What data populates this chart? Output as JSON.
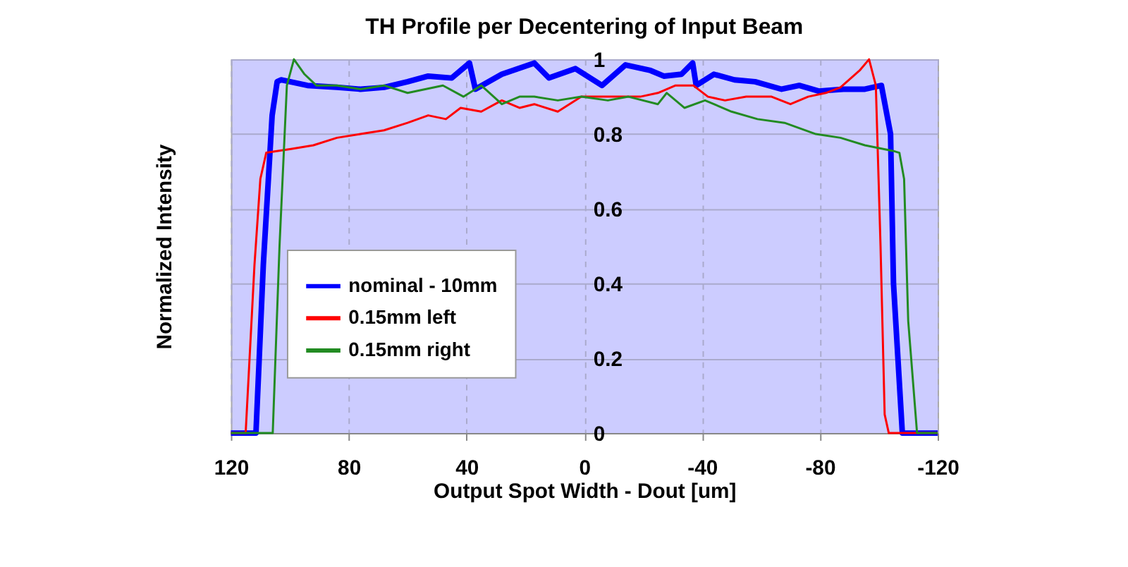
{
  "chart_data": {
    "type": "line",
    "title": "TH Profile per Decentering of Input Beam",
    "xlabel": "Output Spot Width - Dout  [um]",
    "ylabel": "Normalized Intensity",
    "xlim": [
      120,
      -120
    ],
    "xticks": [
      120,
      80,
      40,
      0,
      -40,
      -80,
      -120
    ],
    "ylim": [
      0,
      1
    ],
    "yticks": [
      0,
      0.2,
      0.4,
      0.6,
      0.8,
      1
    ],
    "grid": true,
    "legend": "bottom left",
    "line_style": "solid",
    "marker": "none",
    "series": [
      {
        "name": "nominal - 10mm",
        "color": "#0000ff",
        "x": [
          120,
          111.5,
          109,
          106,
          104.3,
          103,
          94,
          84,
          76,
          68,
          60,
          53,
          45,
          39,
          37,
          28,
          17,
          12,
          3,
          -6,
          -14,
          -22.5,
          -27,
          -33,
          -36.8,
          -38,
          -44,
          -51,
          -58,
          -67,
          -73,
          -79.6,
          -88,
          -95.3,
          -100.9,
          -104,
          -105,
          -108,
          -120
        ],
        "values": [
          0,
          0,
          0.45,
          0.85,
          0.94,
          0.945,
          0.93,
          0.925,
          0.92,
          0.925,
          0.94,
          0.955,
          0.95,
          0.99,
          0.92,
          0.96,
          0.99,
          0.95,
          0.975,
          0.93,
          0.985,
          0.97,
          0.955,
          0.96,
          0.99,
          0.93,
          0.96,
          0.945,
          0.94,
          0.92,
          0.93,
          0.915,
          0.92,
          0.92,
          0.93,
          0.8,
          0.4,
          0,
          0
        ]
      },
      {
        "name": "0.15mm left",
        "color": "#ff0000",
        "x": [
          120,
          115,
          112,
          110,
          108,
          99.6,
          92,
          84,
          76,
          68,
          60,
          53,
          47,
          42,
          35,
          28,
          22,
          17,
          9,
          1,
          -9,
          -19,
          -25,
          -31,
          -37,
          -42,
          -47.8,
          -55,
          -63.6,
          -70,
          -76,
          -82,
          -87,
          -93.5,
          -96.7,
          -99,
          -100.6,
          -102,
          -103.4,
          -120
        ],
        "values": [
          0,
          0,
          0.45,
          0.68,
          0.75,
          0.76,
          0.77,
          0.79,
          0.8,
          0.81,
          0.83,
          0.85,
          0.84,
          0.87,
          0.86,
          0.89,
          0.87,
          0.88,
          0.86,
          0.9,
          0.9,
          0.9,
          0.91,
          0.93,
          0.93,
          0.9,
          0.89,
          0.9,
          0.9,
          0.88,
          0.9,
          0.91,
          0.925,
          0.97,
          1.0,
          0.93,
          0.5,
          0.05,
          0,
          0
        ]
      },
      {
        "name": "0.15mm right",
        "color": "#228b22",
        "x": [
          120,
          105.8,
          103.5,
          101,
          98.6,
          95,
          91,
          84,
          76,
          68,
          60,
          54,
          48,
          41,
          35,
          28,
          22,
          17,
          9,
          1,
          -8,
          -15,
          -25,
          -28,
          -34,
          -41,
          -50,
          -58.8,
          -68,
          -78.6,
          -87,
          -95.3,
          -104.8,
          -107,
          -108.6,
          -110,
          -113,
          -120
        ],
        "values": [
          0,
          0,
          0.5,
          0.93,
          1.0,
          0.96,
          0.93,
          0.93,
          0.92,
          0.93,
          0.91,
          0.92,
          0.93,
          0.9,
          0.93,
          0.88,
          0.9,
          0.9,
          0.89,
          0.9,
          0.89,
          0.9,
          0.88,
          0.91,
          0.87,
          0.89,
          0.86,
          0.84,
          0.83,
          0.8,
          0.79,
          0.77,
          0.755,
          0.75,
          0.68,
          0.3,
          0,
          0
        ]
      }
    ]
  }
}
